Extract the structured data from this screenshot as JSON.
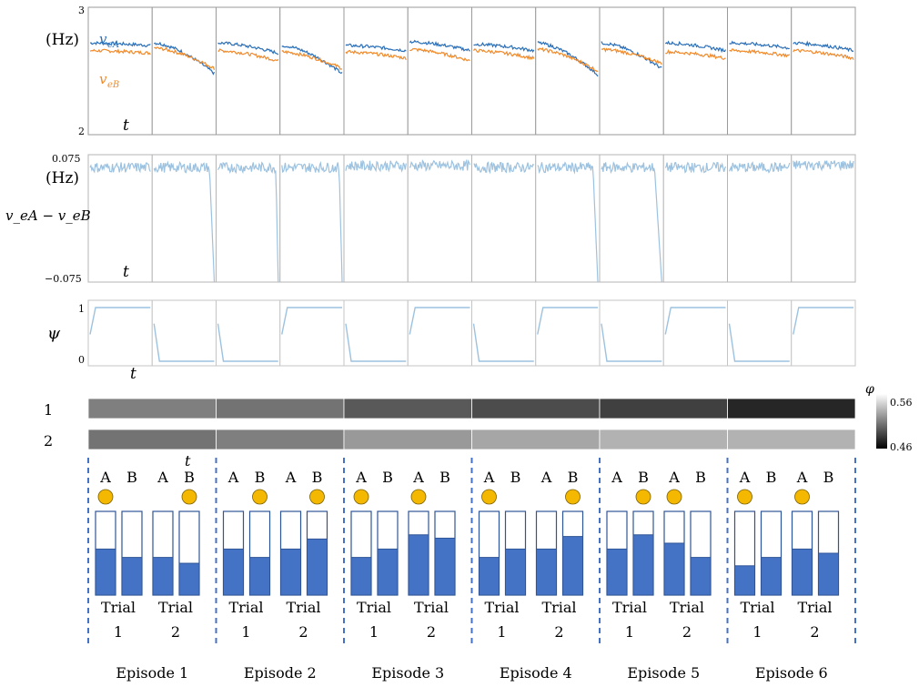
{
  "chart_data": [
    {
      "type": "line",
      "y_unit_label": "(Hz)",
      "ylim": [
        2,
        3
      ],
      "y_ticks": [
        "3",
        "2"
      ],
      "x_axis_label": "t",
      "series": [
        {
          "name": "v_eA",
          "label_main": "v",
          "label_sub": "eA",
          "color": "#2a6fb8"
        },
        {
          "name": "v_eB",
          "label_main": "v",
          "label_sub": "eB",
          "color": "#f08a2a"
        }
      ],
      "panels": [
        {
          "A": [
            2.72,
            2.7
          ],
          "B": [
            2.66,
            2.64
          ]
        },
        {
          "A": [
            2.72,
            2.48
          ],
          "B": [
            2.68,
            2.52
          ]
        },
        {
          "A": [
            2.72,
            2.64
          ],
          "B": [
            2.66,
            2.58
          ]
        },
        {
          "A": [
            2.7,
            2.48
          ],
          "B": [
            2.65,
            2.52
          ]
        },
        {
          "A": [
            2.7,
            2.66
          ],
          "B": [
            2.65,
            2.6
          ]
        },
        {
          "A": [
            2.73,
            2.66
          ],
          "B": [
            2.67,
            2.58
          ]
        },
        {
          "A": [
            2.71,
            2.66
          ],
          "B": [
            2.66,
            2.6
          ]
        },
        {
          "A": [
            2.72,
            2.47
          ],
          "B": [
            2.67,
            2.5
          ]
        },
        {
          "A": [
            2.72,
            2.52
          ],
          "B": [
            2.67,
            2.56
          ]
        },
        {
          "A": [
            2.72,
            2.66
          ],
          "B": [
            2.65,
            2.6
          ]
        },
        {
          "A": [
            2.72,
            2.68
          ],
          "B": [
            2.66,
            2.62
          ]
        },
        {
          "A": [
            2.72,
            2.66
          ],
          "B": [
            2.66,
            2.6
          ]
        }
      ]
    },
    {
      "type": "line",
      "y_unit_label": "(Hz)",
      "y_axis_label": "v_eA − v_eB",
      "ylim": [
        -0.075,
        0.075
      ],
      "y_ticks": [
        "0.075",
        "−0.075"
      ],
      "x_axis_label": "t",
      "color": "#9cc2e0",
      "panels": [
        {
          "level": 0.06,
          "drop_at": null
        },
        {
          "level": 0.06,
          "drop_at": 0.92
        },
        {
          "level": 0.06,
          "drop_at": 0.96
        },
        {
          "level": 0.06,
          "drop_at": 0.95
        },
        {
          "level": 0.062,
          "drop_at": null
        },
        {
          "level": 0.062,
          "drop_at": null
        },
        {
          "level": 0.06,
          "drop_at": null
        },
        {
          "level": 0.06,
          "drop_at": 0.92
        },
        {
          "level": 0.06,
          "drop_at": 0.88
        },
        {
          "level": 0.06,
          "drop_at": null
        },
        {
          "level": 0.06,
          "drop_at": null
        },
        {
          "level": 0.063,
          "drop_at": null
        }
      ]
    },
    {
      "type": "line",
      "y_axis_label": "ψ",
      "ylim": [
        0,
        1
      ],
      "y_ticks": [
        "1",
        "0"
      ],
      "x_axis_label": "t",
      "color": "#9cc2e0",
      "panels": [
        1,
        0,
        0,
        1,
        0,
        1,
        0,
        1,
        0,
        1,
        0,
        1
      ]
    },
    {
      "type": "heatmap",
      "row_labels": [
        "1",
        "2"
      ],
      "colorbar": {
        "label": "φ",
        "max_label": "0.56",
        "min_label": "0.46",
        "range": [
          0.46,
          0.56
        ]
      },
      "rows": [
        [
          0.51,
          0.505,
          0.495,
          0.49,
          0.485,
          0.475
        ],
        [
          0.505,
          0.51,
          0.52,
          0.525,
          0.53,
          0.53
        ]
      ]
    },
    {
      "type": "bar",
      "series": [
        "A",
        "B"
      ],
      "values": [
        [
          0.55,
          0.45
        ],
        [
          0.45,
          0.38
        ],
        [
          0.55,
          0.45
        ],
        [
          0.55,
          0.67
        ],
        [
          0.45,
          0.55
        ],
        [
          0.72,
          0.68
        ],
        [
          0.45,
          0.55
        ],
        [
          0.55,
          0.7
        ],
        [
          0.55,
          0.72
        ],
        [
          0.62,
          0.45
        ],
        [
          0.35,
          0.45
        ],
        [
          0.55,
          0.5
        ]
      ],
      "marked_option": [
        "A",
        "B",
        "B",
        "B",
        "A",
        "A",
        "A",
        "B",
        "B",
        "A",
        "A",
        "A"
      ],
      "marker_color": "#f5b800",
      "bar_color": "#4472c4"
    }
  ],
  "labels": {
    "time": "t",
    "col_A": "A",
    "col_B": "B",
    "trial_word": "Trial",
    "trial_numbers": [
      "1",
      "2"
    ],
    "episodes": [
      "Episode 1",
      "Episode 2",
      "Episode 3",
      "Episode 4",
      "Episode 5",
      "Episode 6"
    ]
  }
}
